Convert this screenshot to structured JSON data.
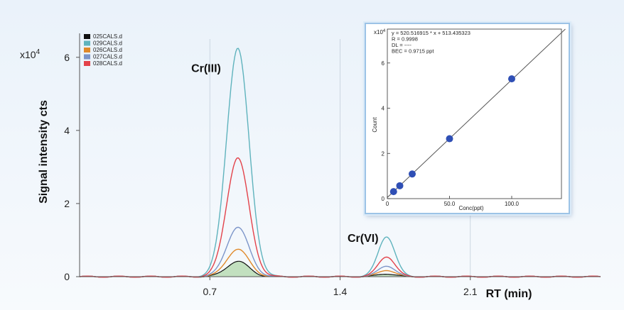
{
  "chart_data": [
    {
      "type": "line",
      "multiplier_label": "x10",
      "multiplier_exp": "4",
      "ylabel": "Signal intensity cts",
      "xlabel": "RT (min)",
      "xlim": [
        0.0,
        2.8
      ],
      "ylim": [
        0,
        6.5
      ],
      "x_ticks": [
        {
          "value": 0.7,
          "label": "0.7"
        },
        {
          "value": 1.4,
          "label": "1.4"
        },
        {
          "value": 2.1,
          "label": "2.1"
        }
      ],
      "y_ticks": [
        {
          "value": 0,
          "label": "0"
        },
        {
          "value": 2,
          "label": "2"
        },
        {
          "value": 4,
          "label": "4"
        },
        {
          "value": 6,
          "label": "6"
        }
      ],
      "grid": true,
      "legend_position": "top-left",
      "series": [
        {
          "name": "025CALS.d",
          "color": "#111111",
          "fill": "#b9dcb4",
          "peak1": {
            "x": 0.85,
            "height": 0.42
          },
          "peak2": {
            "x": 1.65,
            "height": 0.08
          }
        },
        {
          "name": "029CALS.d",
          "color": "#5fb3bd",
          "peak1": {
            "x": 0.85,
            "height": 6.25
          },
          "peak2": {
            "x": 1.65,
            "height": 1.1
          }
        },
        {
          "name": "026CALS.d",
          "color": "#e0892a",
          "peak1": {
            "x": 0.85,
            "height": 0.75
          },
          "peak2": {
            "x": 1.65,
            "height": 0.18
          }
        },
        {
          "name": "027CALS.d",
          "color": "#7c95c9",
          "peak1": {
            "x": 0.85,
            "height": 1.35
          },
          "peak2": {
            "x": 1.65,
            "height": 0.3
          }
        },
        {
          "name": "028CALS.d",
          "color": "#e3424a",
          "peak1": {
            "x": 0.85,
            "height": 3.25
          },
          "peak2": {
            "x": 1.65,
            "height": 0.55
          }
        }
      ],
      "annotations": [
        {
          "text": "Cr(III)",
          "x": 0.6,
          "y": 5.6
        },
        {
          "text": "Cr(VI)",
          "x": 1.44,
          "y": 0.95
        }
      ]
    },
    {
      "type": "scatter",
      "multiplier_label": "x10",
      "multiplier_exp": "4",
      "xlabel": "Conc(ppt)",
      "ylabel": "Count",
      "xlim": [
        0,
        140
      ],
      "ylim": [
        0,
        7.5
      ],
      "x_ticks": [
        {
          "value": 0,
          "label": "0"
        },
        {
          "value": 50,
          "label": "50.0"
        },
        {
          "value": 100,
          "label": "100.0"
        }
      ],
      "y_ticks": [
        {
          "value": 0,
          "label": "0"
        },
        {
          "value": 2,
          "label": "2"
        },
        {
          "value": 4,
          "label": "4"
        },
        {
          "value": 6,
          "label": "6"
        }
      ],
      "equation_lines": [
        "y = 520.516915 * x + 513.435323",
        "R = 0.9998",
        "DL = ----",
        "BEC = 0.9715 ppt"
      ],
      "fit": {
        "slope": 0.0520516915,
        "intercept": 0.0513435323
      },
      "points": [
        {
          "x": 5,
          "y": 0.31
        },
        {
          "x": 10,
          "y": 0.57
        },
        {
          "x": 20,
          "y": 1.09
        },
        {
          "x": 50,
          "y": 2.65
        },
        {
          "x": 100,
          "y": 5.3
        }
      ],
      "marker_color": "#2f4fb5",
      "line_color": "#555555"
    }
  ]
}
